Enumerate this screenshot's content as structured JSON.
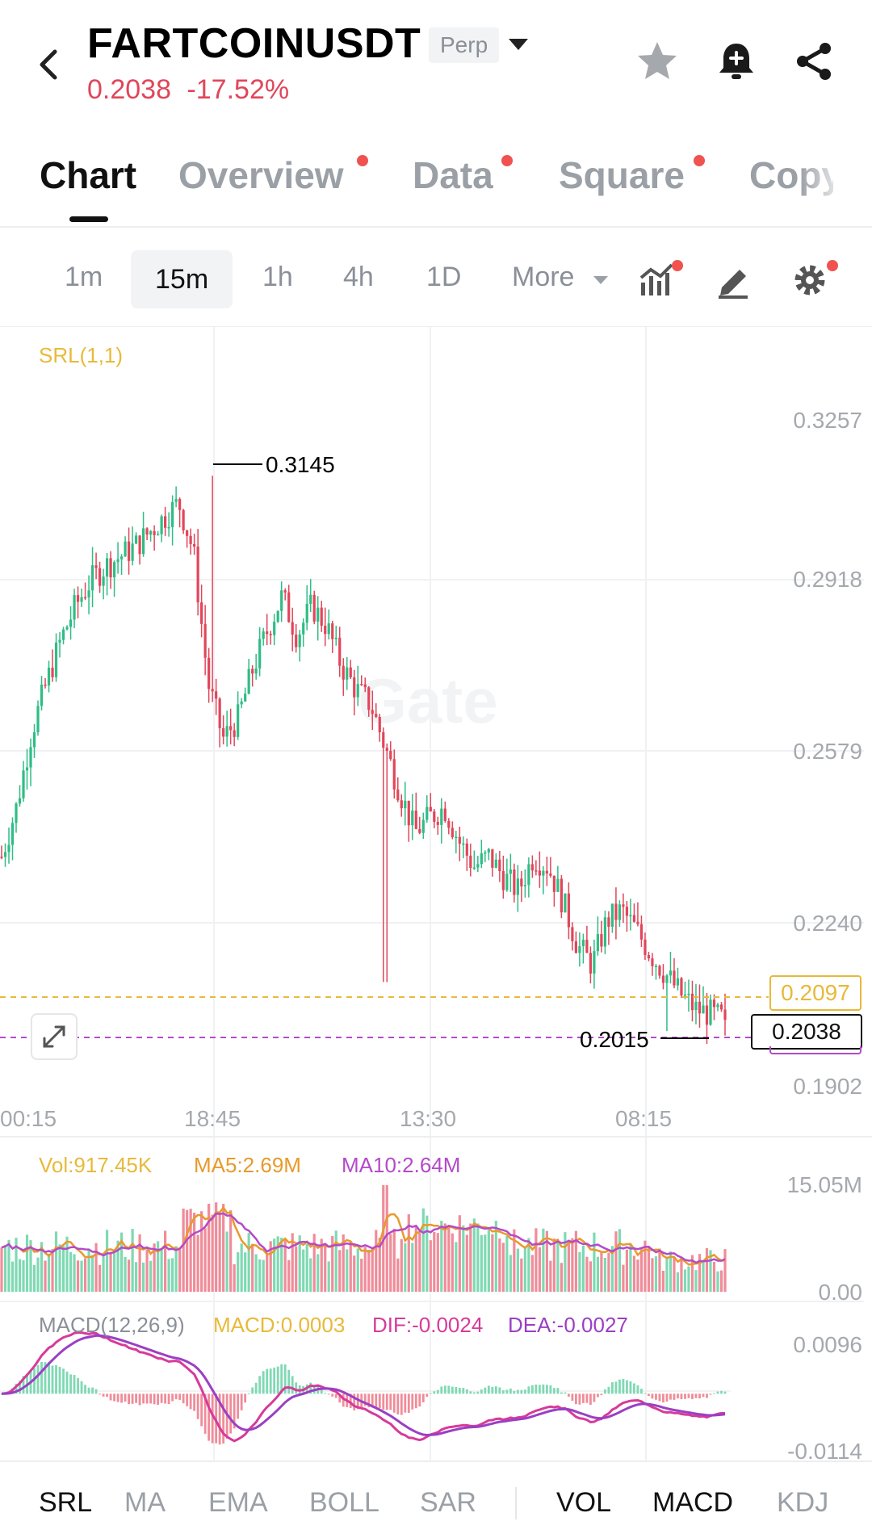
{
  "header": {
    "symbol": "FARTCOINUSDT",
    "contract_type": "Perp",
    "last_price": "0.2038",
    "change_pct": "-17.52%",
    "icons": [
      "back-icon",
      "star-icon",
      "bell-add-icon",
      "share-icon"
    ]
  },
  "tabs": [
    {
      "label": "Chart",
      "active": true,
      "dot": false
    },
    {
      "label": "Overview",
      "active": false,
      "dot": true
    },
    {
      "label": "Data",
      "active": false,
      "dot": true
    },
    {
      "label": "Square",
      "active": false,
      "dot": true
    },
    {
      "label": "Copy",
      "active": false,
      "dot": false
    }
  ],
  "intervals": {
    "items": [
      "1m",
      "15m",
      "1h",
      "4h",
      "1D"
    ],
    "selected": "15m",
    "more_label": "More"
  },
  "main_chart": {
    "indicator_label": "SRL(1,1)",
    "watermark": "Gate",
    "y_ticks": [
      "0.3257",
      "0.2918",
      "0.2579",
      "0.2240",
      "0.1902"
    ],
    "x_ticks": [
      "00:15",
      "18:45",
      "13:30",
      "08:15"
    ],
    "high_label": "0.3145",
    "low_label": "0.2015",
    "srl_price": "0.2097",
    "current_price": "0.2038"
  },
  "volume_panel": {
    "vol_label": "Vol:917.45K",
    "ma5_label": "MA5:2.69M",
    "ma10_label": "MA10:2.64M",
    "y_top": "15.05M",
    "y_bottom": "0.00"
  },
  "macd_panel": {
    "title": "MACD(12,26,9)",
    "macd_label": "MACD:0.0003",
    "dif_label": "DIF:-0.0024",
    "dea_label": "DEA:-0.0027",
    "y_top": "0.0096",
    "y_bottom": "-0.0114"
  },
  "bottom_indicators": {
    "main": [
      "SRL",
      "MA",
      "EMA",
      "BOLL",
      "SAR"
    ],
    "sub": [
      "VOL",
      "MACD",
      "KDJ"
    ]
  },
  "chart_data": {
    "type": "candlestick",
    "interval": "15m",
    "y_range": [
      0.1902,
      0.3257
    ],
    "x_ticks": [
      "00:15",
      "18:45",
      "13:30",
      "08:15"
    ],
    "close_path": [
      0.237,
      0.247,
      0.262,
      0.272,
      0.281,
      0.288,
      0.293,
      0.296,
      0.298,
      0.3,
      0.303,
      0.306,
      0.309,
      0.299,
      0.272,
      0.261,
      0.265,
      0.275,
      0.283,
      0.29,
      0.282,
      0.288,
      0.284,
      0.276,
      0.271,
      0.268,
      0.259,
      0.25,
      0.242,
      0.245,
      0.247,
      0.24,
      0.235,
      0.237,
      0.233,
      0.23,
      0.237,
      0.235,
      0.228,
      0.219,
      0.215,
      0.224,
      0.226,
      0.222,
      0.217,
      0.213,
      0.209,
      0.206,
      0.205,
      0.2038
    ],
    "high": 0.3145,
    "low": 0.2015,
    "srl_level": 0.2097,
    "last": 0.2038,
    "volume_y_range": [
      0,
      15.05
    ],
    "macd_y_range": [
      -0.0114,
      0.0096
    ]
  }
}
